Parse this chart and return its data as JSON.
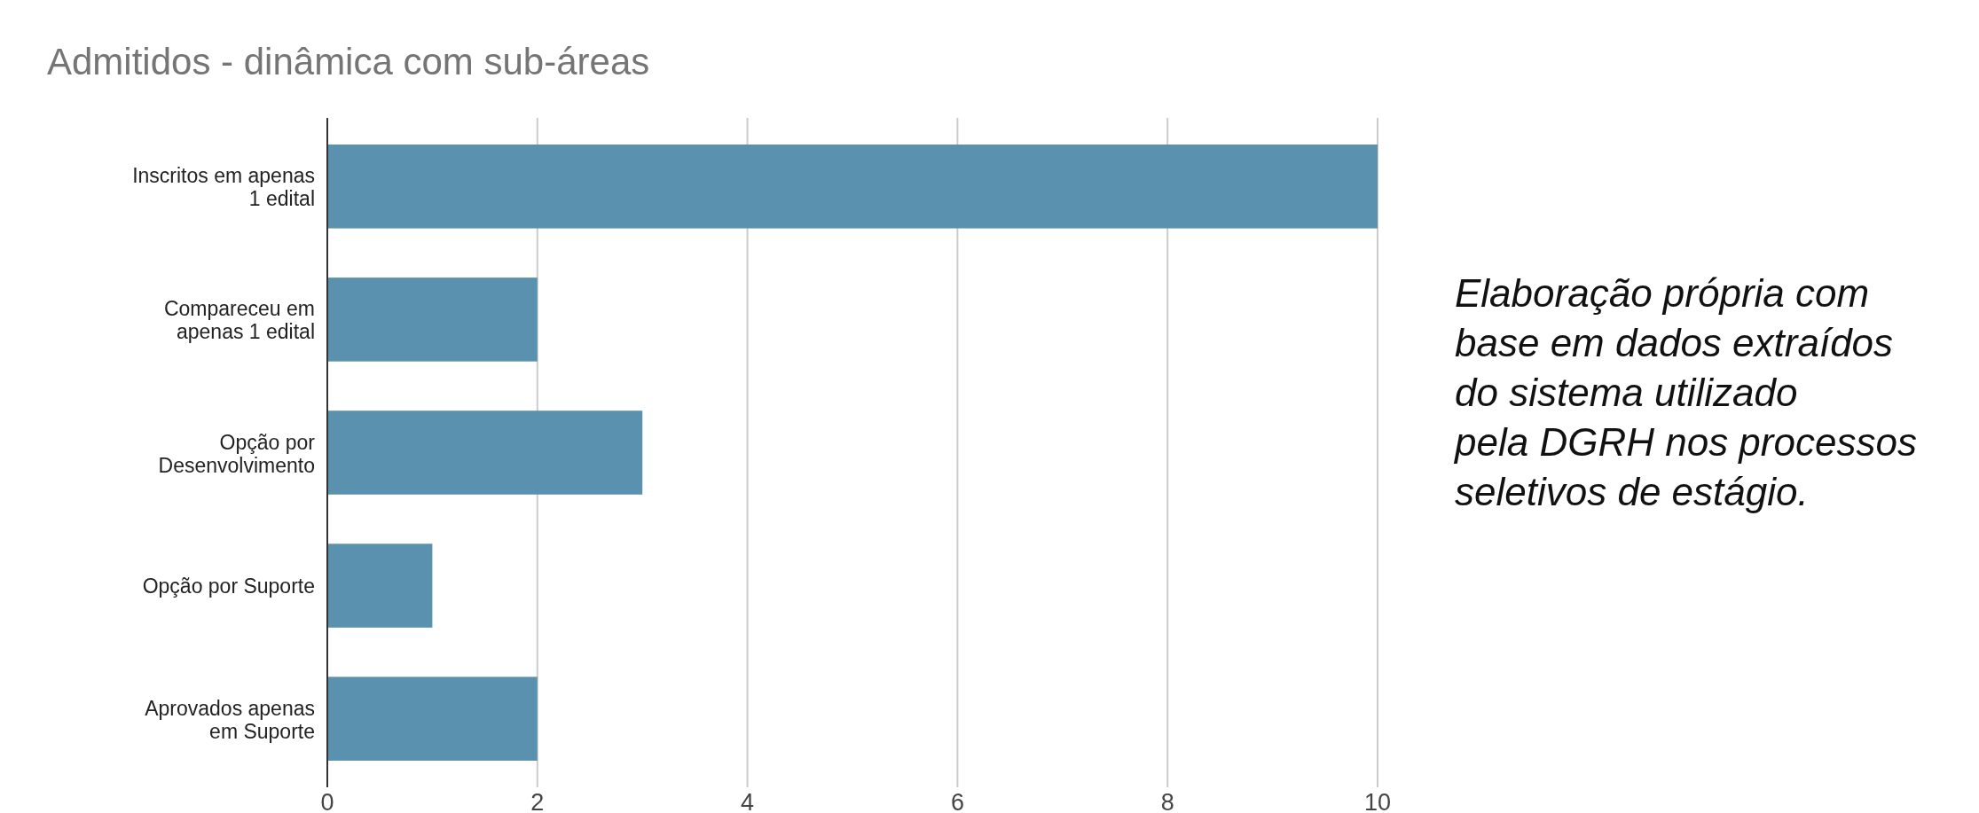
{
  "chart_data": {
    "type": "bar",
    "orientation": "horizontal",
    "title": "Admitidos - dinâmica com sub-áreas",
    "categories": [
      "Inscritos em apenas\n1 edital",
      "Compareceu em\napenas 1 edital",
      "Opção por\nDesenvolvimento",
      "Opção por Suporte",
      "Aprovados apenas\nem Suporte"
    ],
    "values": [
      10,
      2,
      3,
      1,
      2
    ],
    "color": "#5a91ae",
    "xlim": [
      0,
      10
    ],
    "xticks": [
      0,
      2,
      4,
      6,
      8,
      10
    ],
    "grid": "x",
    "annotations": [
      "Elaboração própria com base em dados extraídos do sistema utilizado pela DGRH nos processos seletivos de estágio."
    ]
  }
}
